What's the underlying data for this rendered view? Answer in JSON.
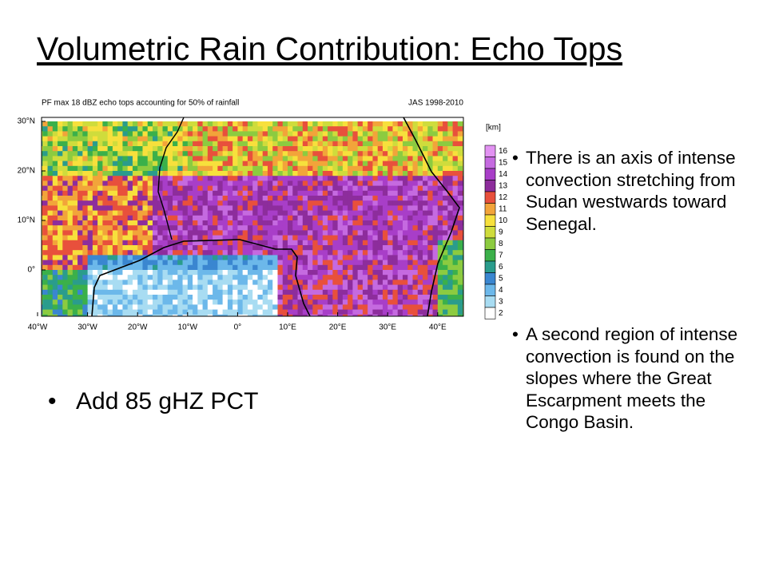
{
  "slide": {
    "title": "Volumetric Rain Contribution: Echo Tops",
    "figure": {
      "title": "PF max 18 dBZ echo tops accounting for 50% of rainfall",
      "period": "JAS 1998-2010",
      "y_labels": [
        "30°N",
        "20°N",
        "10°N",
        "0°"
      ],
      "x_labels": [
        "40°W",
        "30°W",
        "20°W",
        "10°W",
        "0°",
        "10°E",
        "20°E",
        "30°E",
        "40°E"
      ],
      "colorbar_unit": "[km]",
      "colorbar_labels": [
        "16",
        "15",
        "14",
        "13",
        "12",
        "11",
        "10",
        "9",
        "8",
        "7",
        "6",
        "5",
        "4",
        "3",
        "2"
      ]
    },
    "bullets": [
      "Add 85 gHZ PCT"
    ],
    "side_bullets": [
      "There is an axis of intense convection stretching from Sudan westwards toward Senegal.",
      "A second region of intense convection is found on the slopes where the Great Escarpment meets the Congo Basin."
    ]
  }
}
